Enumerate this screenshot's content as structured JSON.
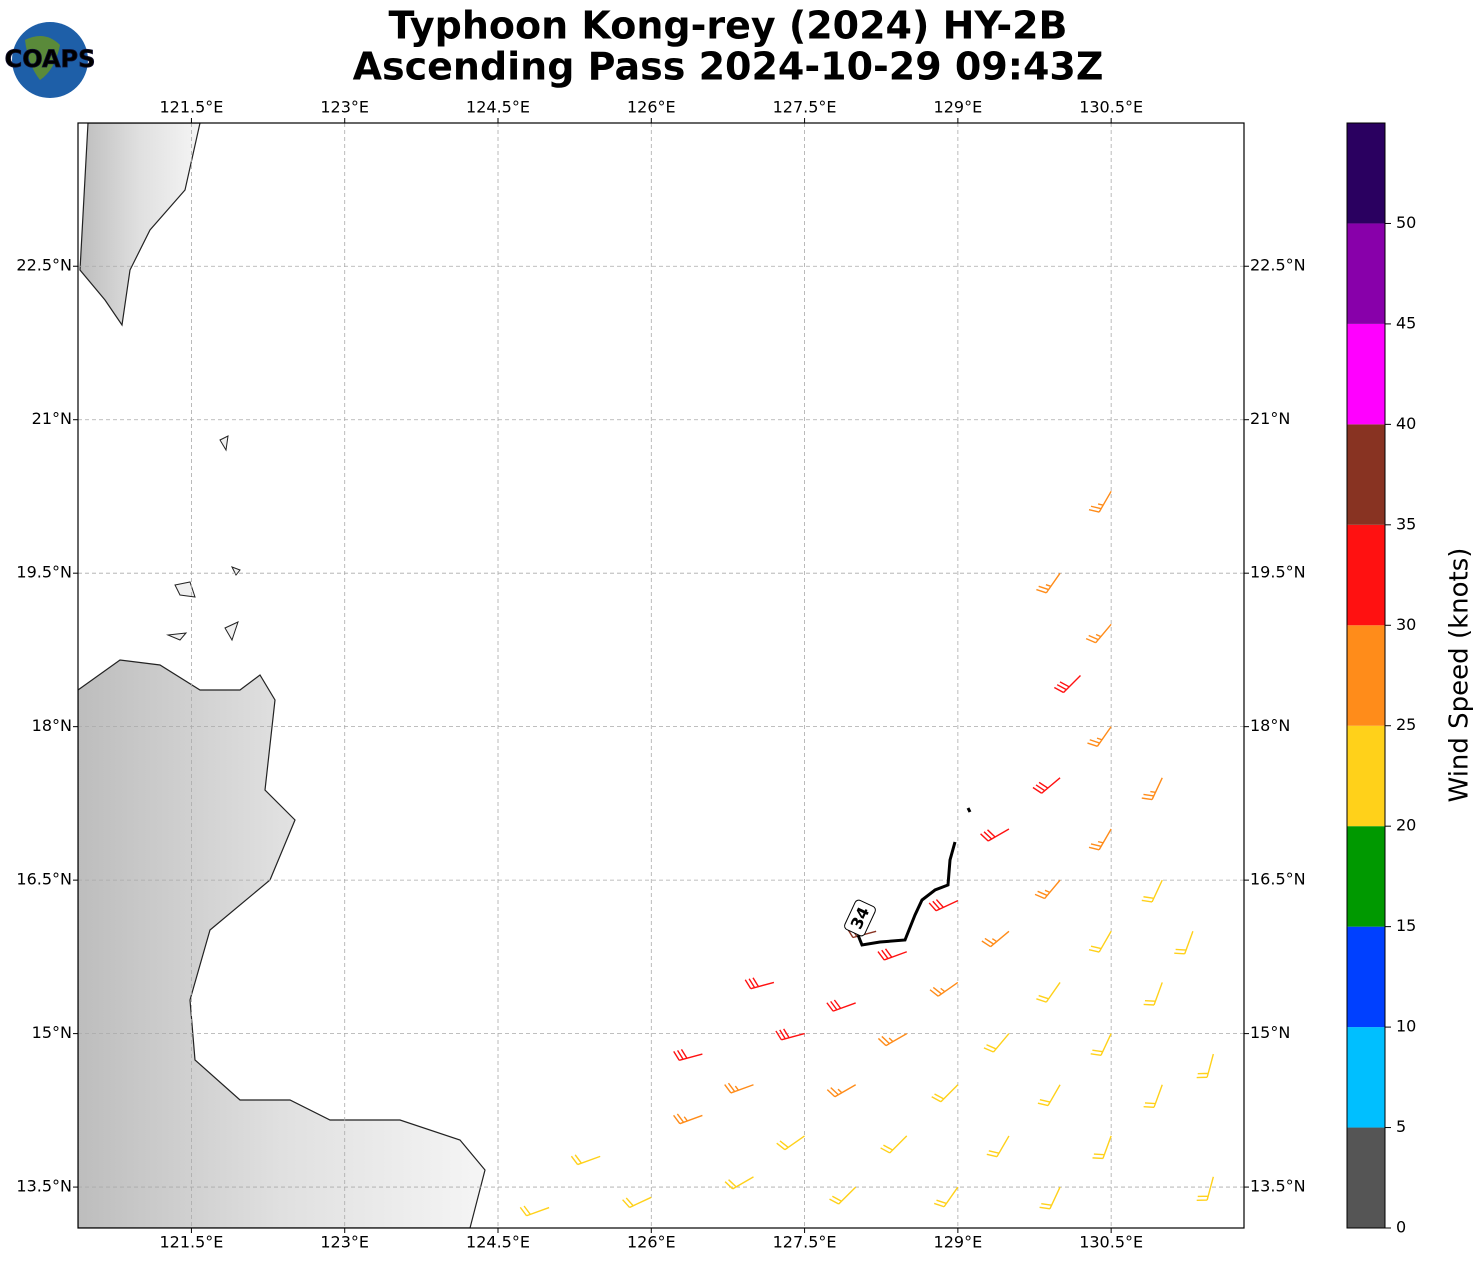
{
  "map": {
    "title": [
      "Typhoon Kong-rey (2024) HY-2B",
      "Ascending Pass 2024-10-29 09:43Z"
    ],
    "logo": "COAPS",
    "xlim": [
      120.39,
      131.8
    ],
    "ylim": [
      13.1,
      23.9
    ],
    "xticks": [
      {
        "value": 121.5,
        "label": "121.5°E"
      },
      {
        "value": 123,
        "label": "123°E"
      },
      {
        "value": 124.5,
        "label": "124.5°E"
      },
      {
        "value": 126,
        "label": "126°E"
      },
      {
        "value": 127.5,
        "label": "127.5°E"
      },
      {
        "value": 129,
        "label": "129°E"
      },
      {
        "value": 130.5,
        "label": "130.5°E"
      }
    ],
    "yticks": [
      {
        "value": 22.5,
        "label": "22.5°N"
      },
      {
        "value": 21,
        "label": "21°N"
      },
      {
        "value": 19.5,
        "label": "19.5°N"
      },
      {
        "value": 18,
        "label": "18°N"
      },
      {
        "value": 16.5,
        "label": "16.5°N"
      },
      {
        "value": 15,
        "label": "15°N"
      },
      {
        "value": 13.5,
        "label": "13.5°N"
      }
    ],
    "grid": true,
    "contour": {
      "level": 34,
      "label": "34"
    },
    "colorbar": {
      "label": "Wind Speed (knots)",
      "lim": [
        0,
        55
      ],
      "ticks": [
        0,
        5,
        10,
        15,
        20,
        25,
        30,
        35,
        40,
        45,
        50
      ],
      "bounds": [
        0,
        5,
        10,
        15,
        20,
        25,
        30,
        35,
        40,
        45,
        50,
        55
      ],
      "colors": [
        "#555555",
        "#00bfff",
        "#0040ff",
        "#009900",
        "#ffd11a",
        "#ff8c1a",
        "#ff1111",
        "#883322",
        "#ff00ff",
        "#8800aa",
        "#2a0060"
      ]
    },
    "barbs": [
      [
        125.0,
        13.3,
        22,
        250
      ],
      [
        125.5,
        13.8,
        22,
        250
      ],
      [
        126.0,
        13.4,
        24,
        245
      ],
      [
        126.5,
        14.2,
        27,
        250
      ],
      [
        127.0,
        13.6,
        23,
        240
      ],
      [
        127.0,
        14.5,
        27,
        250
      ],
      [
        127.5,
        14.0,
        24,
        235
      ],
      [
        127.5,
        15.0,
        32,
        255
      ],
      [
        128.0,
        13.5,
        22,
        225
      ],
      [
        128.0,
        14.5,
        26,
        240
      ],
      [
        128.0,
        15.3,
        32,
        250
      ],
      [
        128.5,
        14.0,
        23,
        225
      ],
      [
        128.5,
        15.0,
        28,
        240
      ],
      [
        128.5,
        15.8,
        33,
        250
      ],
      [
        129.0,
        13.5,
        22,
        215
      ],
      [
        129.0,
        14.5,
        24,
        225
      ],
      [
        129.0,
        15.5,
        28,
        235
      ],
      [
        129.0,
        16.3,
        33,
        245
      ],
      [
        129.5,
        14.0,
        22,
        210
      ],
      [
        129.5,
        15.0,
        24,
        220
      ],
      [
        129.5,
        16.0,
        27,
        230
      ],
      [
        129.5,
        17.0,
        32,
        240
      ],
      [
        130.0,
        13.5,
        21,
        205
      ],
      [
        130.0,
        14.5,
        22,
        210
      ],
      [
        130.0,
        15.5,
        24,
        215
      ],
      [
        130.0,
        16.5,
        26,
        220
      ],
      [
        130.0,
        17.5,
        31,
        230
      ],
      [
        130.5,
        14.0,
        21,
        200
      ],
      [
        130.5,
        15.0,
        22,
        205
      ],
      [
        130.5,
        16.0,
        24,
        210
      ],
      [
        130.5,
        17.0,
        25,
        210
      ],
      [
        130.5,
        18.0,
        28,
        215
      ],
      [
        130.5,
        19.0,
        27,
        220
      ],
      [
        130.5,
        20.3,
        27,
        210
      ],
      [
        131.0,
        14.5,
        21,
        200
      ],
      [
        131.0,
        15.5,
        22,
        200
      ],
      [
        131.0,
        16.5,
        24,
        205
      ],
      [
        131.0,
        17.5,
        26,
        205
      ],
      [
        131.5,
        13.6,
        21,
        195
      ],
      [
        131.5,
        14.8,
        21,
        195
      ],
      [
        131.3,
        16.0,
        23,
        200
      ],
      [
        130.2,
        18.5,
        31,
        225
      ],
      [
        130.0,
        19.5,
        27,
        215
      ],
      [
        128.2,
        16.0,
        37,
        255
      ],
      [
        127.2,
        15.5,
        31,
        255
      ],
      [
        126.5,
        14.8,
        32,
        255
      ]
    ]
  }
}
